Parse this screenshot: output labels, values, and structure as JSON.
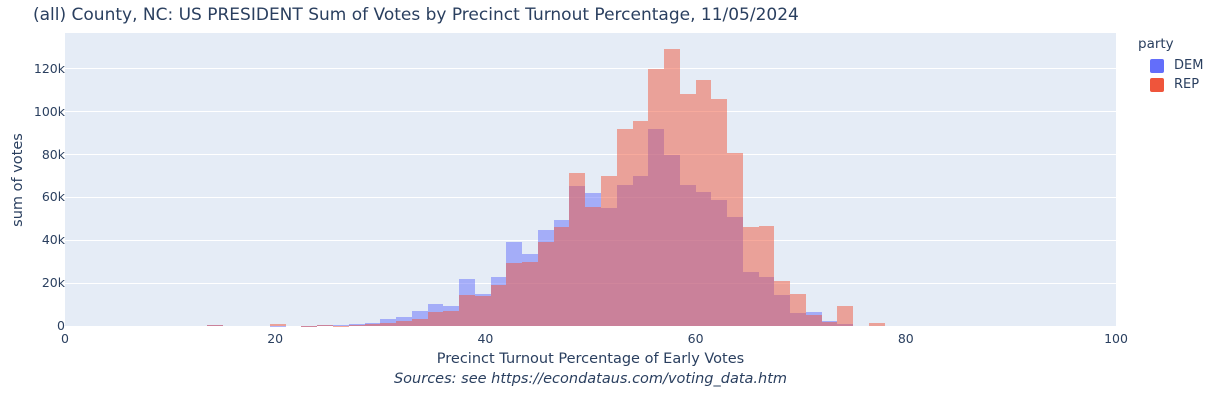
{
  "title": "(all) County, NC: US PRESIDENT Sum of Votes by Precinct Turnout Percentage, 11/05/2024",
  "legend": {
    "title": "party",
    "entries": [
      {
        "label": "DEM",
        "color": "#636efa"
      },
      {
        "label": "REP",
        "color": "#EF553B"
      }
    ]
  },
  "colors": {
    "background": "#ffffff",
    "plot_background": "#e5ecf6",
    "gridline": "#ffffff",
    "dem": "#636efa",
    "rep": "#EF553B",
    "text": "#2a3f5f",
    "bar_opacity": 0.5
  },
  "chart_data": {
    "type": "bar",
    "subtype": "overlaid-histogram",
    "title": "(all) County, NC: US PRESIDENT Sum of Votes by Precinct Turnout Percentage, 11/05/2024",
    "xlabel": "Precinct Turnout Percentage of Early Votes",
    "ylabel": "sum of votes",
    "source_note": "Sources: see https://econdataus.com/voting_data.htm",
    "xlim": [
      0,
      100
    ],
    "ylim": [
      0,
      136800
    ],
    "grid": "horizontal-white",
    "legend_position": "top-right",
    "x_ticks": [
      {
        "label": "0",
        "value": 0
      },
      {
        "label": "20",
        "value": 20
      },
      {
        "label": "40",
        "value": 40
      },
      {
        "label": "60",
        "value": 60
      },
      {
        "label": "80",
        "value": 80
      },
      {
        "label": "100",
        "value": 100
      }
    ],
    "y_ticks": [
      {
        "label": "0",
        "value": 0
      },
      {
        "label": "20k",
        "value": 20000
      },
      {
        "label": "40k",
        "value": 40000
      },
      {
        "label": "60k",
        "value": 60000
      },
      {
        "label": "80k",
        "value": 80000
      },
      {
        "label": "100k",
        "value": 100000
      },
      {
        "label": "120k",
        "value": 120000
      }
    ],
    "bin_width": 1.5,
    "bin_starts": [
      12,
      13.5,
      15,
      16.5,
      18,
      19.5,
      21,
      22.5,
      24,
      25.5,
      27,
      28.5,
      30,
      31.5,
      33,
      34.5,
      36,
      37.5,
      39,
      40.5,
      42,
      43.5,
      45,
      46.5,
      48,
      49.5,
      51,
      52.5,
      54,
      55.5,
      57,
      58.5,
      60,
      61.5,
      63,
      64.5,
      66,
      67.5,
      69,
      70.5,
      72,
      73.5,
      75,
      76.5
    ],
    "series": [
      {
        "name": "DEM",
        "color": "#636efa",
        "values": [
          0,
          300,
          0,
          0,
          0,
          200,
          0,
          100,
          700,
          400,
          1100,
          1600,
          3300,
          4000,
          6900,
          10500,
          9500,
          22000,
          15000,
          23000,
          39000,
          33500,
          45000,
          49500,
          65500,
          62000,
          55000,
          66000,
          70000,
          92000,
          80000,
          66000,
          62500,
          59000,
          51000,
          25000,
          23000,
          14500,
          6000,
          6500,
          2200,
          1000,
          0,
          0
        ]
      },
      {
        "name": "REP",
        "color": "#EF553B",
        "values": [
          0,
          600,
          0,
          0,
          0,
          1000,
          0,
          100,
          300,
          200,
          500,
          900,
          1500,
          2300,
          3400,
          6500,
          7000,
          14500,
          14000,
          19000,
          29500,
          30000,
          39000,
          46000,
          71500,
          55500,
          70000,
          92000,
          95500,
          120000,
          129500,
          108500,
          115000,
          106000,
          81000,
          46000,
          46500,
          21000,
          15000,
          5300,
          1700,
          9500,
          0,
          1200
        ]
      }
    ]
  }
}
